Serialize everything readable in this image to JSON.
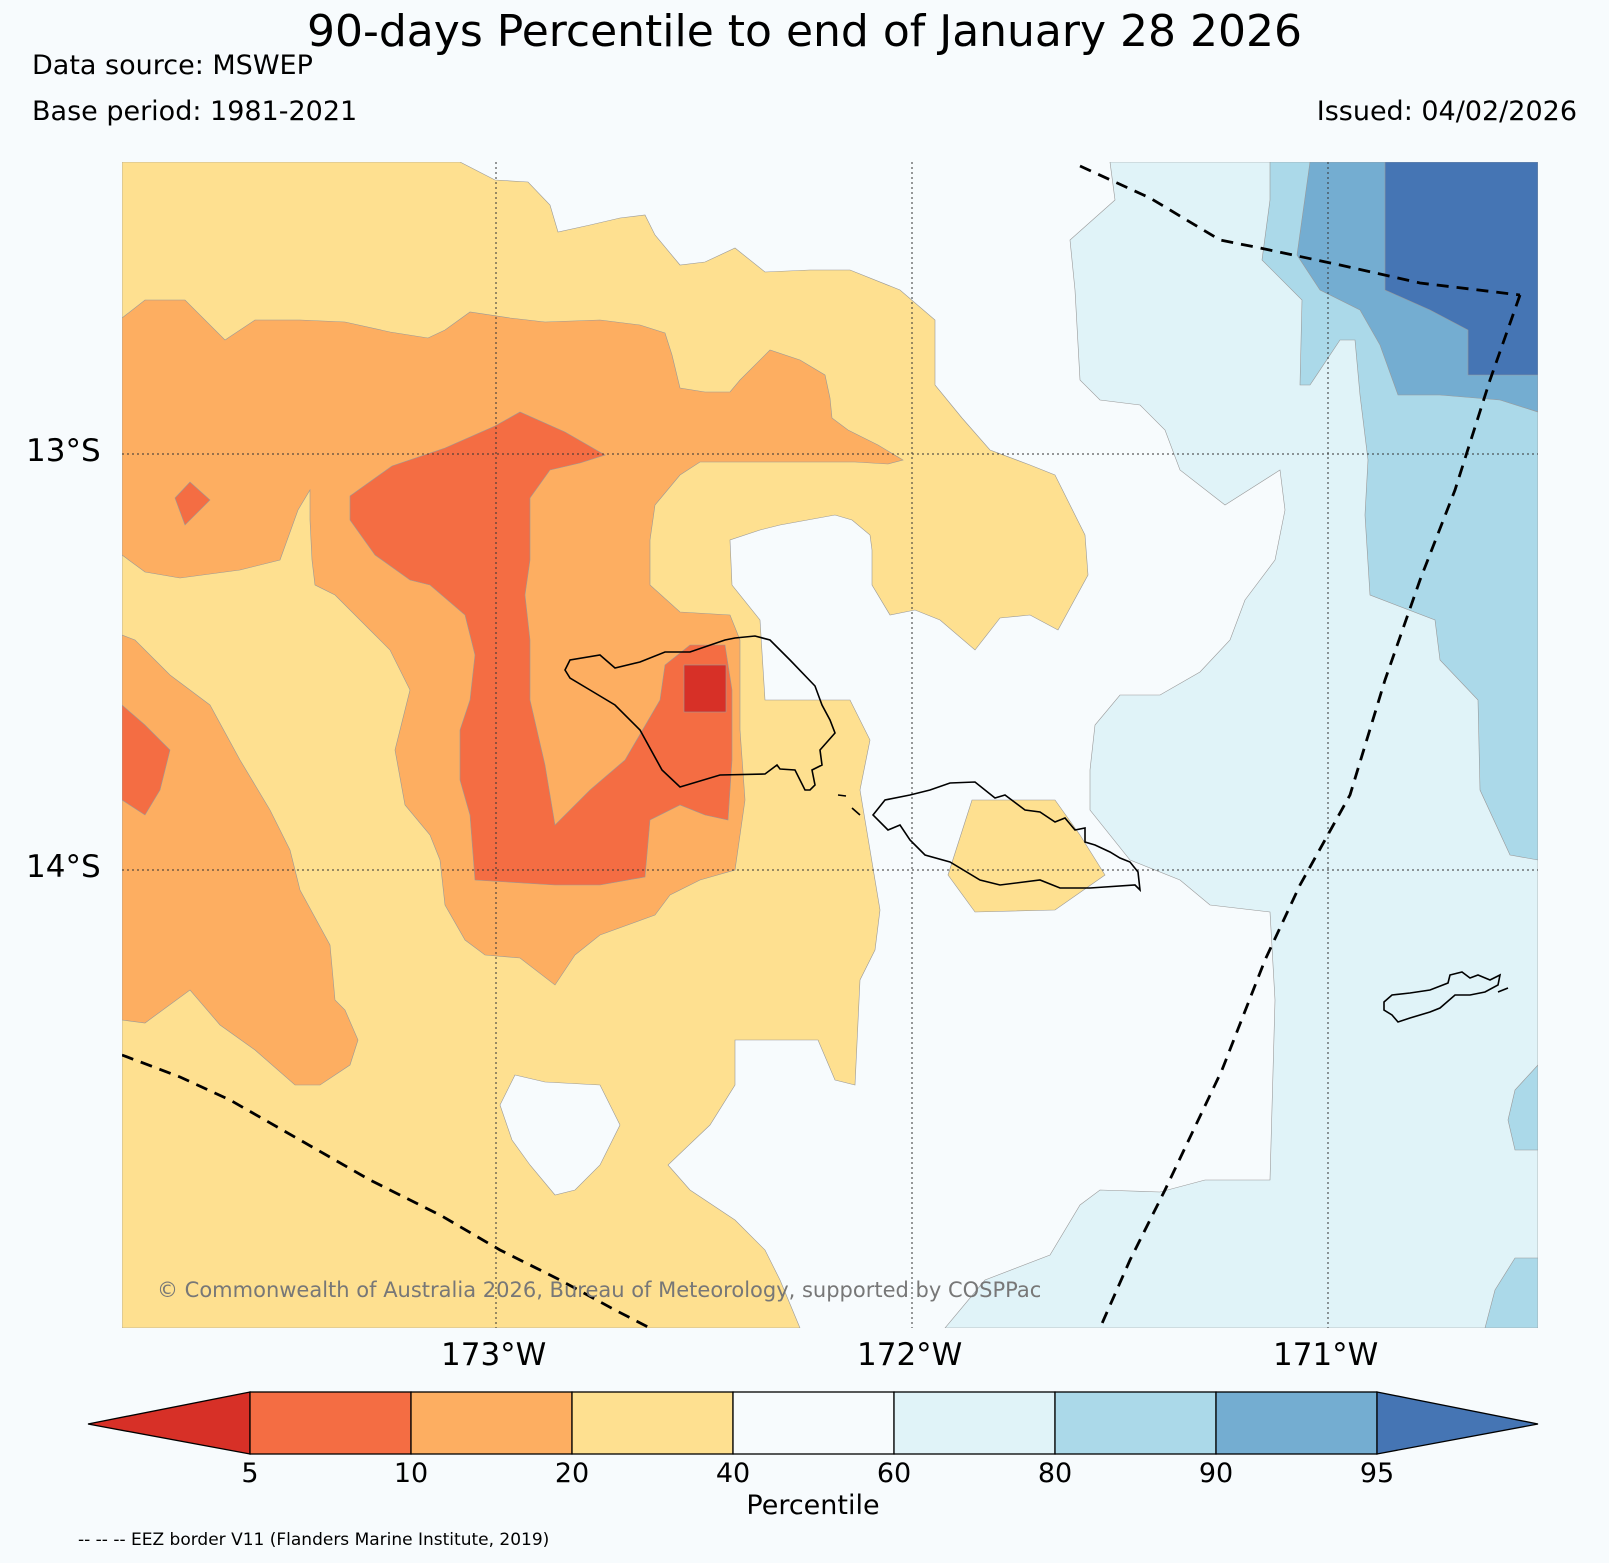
{
  "title": "90-days Percentile to end of January 28 2026",
  "data_source": "Data source: MSWEP",
  "base_period": "Base period: 1981-2021",
  "issued": "Issued: 04/02/2026",
  "copyright": "© Commonwealth of Australia 2026, Bureau of Meteorology, supported by COSPPac",
  "map": {
    "lat_labels": [
      "13°S",
      "14°S"
    ],
    "lon_labels": [
      "173°W",
      "172°W",
      "171°W"
    ]
  },
  "colorbar": {
    "title": "Percentile",
    "ticks": [
      "5",
      "10",
      "20",
      "40",
      "60",
      "80",
      "90",
      "95"
    ],
    "colors": [
      "#d73027",
      "#f46d43",
      "#fdae61",
      "#fee090",
      "#f7fbfd",
      "#e0f3f8",
      "#abd9e9",
      "#74add1",
      "#4575b4"
    ]
  },
  "legend": {
    "eez": "-- -- -- EEZ border V11 (Flanders Marine Institute, 2019)"
  }
}
